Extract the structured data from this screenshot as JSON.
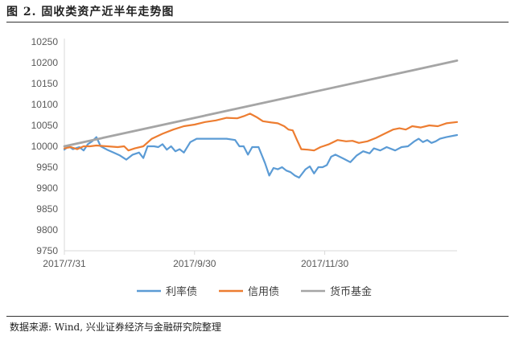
{
  "figure": {
    "title": "图 2. 固收类资产近半年走势图",
    "source": "数据来源: Wind, 兴业证券经济与金融研究院整理"
  },
  "chart_data": {
    "type": "line",
    "ylim": [
      9750,
      10250
    ],
    "yticks": [
      9750,
      9800,
      9850,
      9900,
      9950,
      10000,
      10050,
      10100,
      10150,
      10200,
      10250
    ],
    "xlim": [
      "2017-07-31",
      "2018-01-31"
    ],
    "xticks": [
      {
        "date": "2017-07-31",
        "label": "2017/7/31"
      },
      {
        "date": "2017-09-30",
        "label": "2017/9/30"
      },
      {
        "date": "2017-11-30",
        "label": "2017/11/30"
      }
    ],
    "grid": false,
    "legend_position": "bottom",
    "series": [
      {
        "name": "利率债",
        "color": "#5B9BD5",
        "points": [
          [
            "2017-07-31",
            9992
          ],
          [
            "2017-08-02",
            10000
          ],
          [
            "2017-08-04",
            9993
          ],
          [
            "2017-08-07",
            9998
          ],
          [
            "2017-08-09",
            9990
          ],
          [
            "2017-08-11",
            10005
          ],
          [
            "2017-08-13",
            10012
          ],
          [
            "2017-08-15",
            10022
          ],
          [
            "2017-08-17",
            10000
          ],
          [
            "2017-08-20",
            9992
          ],
          [
            "2017-08-23",
            9985
          ],
          [
            "2017-08-26",
            9978
          ],
          [
            "2017-08-29",
            9968
          ],
          [
            "2017-09-01",
            9980
          ],
          [
            "2017-09-04",
            9985
          ],
          [
            "2017-09-06",
            9972
          ],
          [
            "2017-09-08",
            10000
          ],
          [
            "2017-09-11",
            10000
          ],
          [
            "2017-09-13",
            9998
          ],
          [
            "2017-09-15",
            10005
          ],
          [
            "2017-09-17",
            9992
          ],
          [
            "2017-09-19",
            10000
          ],
          [
            "2017-09-21",
            9988
          ],
          [
            "2017-09-23",
            9993
          ],
          [
            "2017-09-25",
            9985
          ],
          [
            "2017-09-28",
            10010
          ],
          [
            "2017-10-01",
            10018
          ],
          [
            "2017-10-08",
            10018
          ],
          [
            "2017-10-15",
            10018
          ],
          [
            "2017-10-19",
            10015
          ],
          [
            "2017-10-21",
            10000
          ],
          [
            "2017-10-23",
            10000
          ],
          [
            "2017-10-25",
            9980
          ],
          [
            "2017-10-27",
            9998
          ],
          [
            "2017-10-30",
            9998
          ],
          [
            "2017-11-02",
            9960
          ],
          [
            "2017-11-04",
            9930
          ],
          [
            "2017-11-06",
            9948
          ],
          [
            "2017-11-08",
            9945
          ],
          [
            "2017-11-10",
            9950
          ],
          [
            "2017-11-12",
            9942
          ],
          [
            "2017-11-14",
            9938
          ],
          [
            "2017-11-16",
            9930
          ],
          [
            "2017-11-18",
            9925
          ],
          [
            "2017-11-21",
            9945
          ],
          [
            "2017-11-23",
            9952
          ],
          [
            "2017-11-25",
            9935
          ],
          [
            "2017-11-27",
            9950
          ],
          [
            "2017-11-29",
            9950
          ],
          [
            "2017-12-01",
            9955
          ],
          [
            "2017-12-03",
            9975
          ],
          [
            "2017-12-05",
            9980
          ],
          [
            "2017-12-07",
            9975
          ],
          [
            "2017-12-09",
            9970
          ],
          [
            "2017-12-12",
            9962
          ],
          [
            "2017-12-15",
            9978
          ],
          [
            "2017-12-18",
            9988
          ],
          [
            "2017-12-21",
            9983
          ],
          [
            "2017-12-23",
            9995
          ],
          [
            "2017-12-26",
            9990
          ],
          [
            "2017-12-29",
            9998
          ],
          [
            "2018-01-02",
            9990
          ],
          [
            "2018-01-05",
            9998
          ],
          [
            "2018-01-08",
            10000
          ],
          [
            "2018-01-11",
            10012
          ],
          [
            "2018-01-13",
            10018
          ],
          [
            "2018-01-15",
            10010
          ],
          [
            "2018-01-17",
            10015
          ],
          [
            "2018-01-19",
            10008
          ],
          [
            "2018-01-21",
            10012
          ],
          [
            "2018-01-23",
            10018
          ],
          [
            "2018-01-26",
            10022
          ],
          [
            "2018-01-31",
            10027
          ]
        ]
      },
      {
        "name": "信用债",
        "color": "#ED7D31",
        "points": [
          [
            "2017-07-31",
            9995
          ],
          [
            "2017-08-03",
            9998
          ],
          [
            "2017-08-06",
            9993
          ],
          [
            "2017-08-09",
            10000
          ],
          [
            "2017-08-12",
            10000
          ],
          [
            "2017-08-15",
            10002
          ],
          [
            "2017-08-20",
            10000
          ],
          [
            "2017-08-25",
            9998
          ],
          [
            "2017-08-28",
            10000
          ],
          [
            "2017-08-30",
            9990
          ],
          [
            "2017-09-02",
            9995
          ],
          [
            "2017-09-06",
            10000
          ],
          [
            "2017-09-10",
            10018
          ],
          [
            "2017-09-15",
            10030
          ],
          [
            "2017-09-20",
            10040
          ],
          [
            "2017-09-25",
            10048
          ],
          [
            "2017-09-30",
            10052
          ],
          [
            "2017-10-05",
            10058
          ],
          [
            "2017-10-10",
            10062
          ],
          [
            "2017-10-15",
            10068
          ],
          [
            "2017-10-20",
            10067
          ],
          [
            "2017-10-23",
            10072
          ],
          [
            "2017-10-26",
            10078
          ],
          [
            "2017-10-29",
            10070
          ],
          [
            "2017-11-01",
            10060
          ],
          [
            "2017-11-05",
            10057
          ],
          [
            "2017-11-08",
            10055
          ],
          [
            "2017-11-11",
            10048
          ],
          [
            "2017-11-13",
            10040
          ],
          [
            "2017-11-15",
            10038
          ],
          [
            "2017-11-17",
            10015
          ],
          [
            "2017-11-19",
            9993
          ],
          [
            "2017-11-22",
            9992
          ],
          [
            "2017-11-25",
            9990
          ],
          [
            "2017-11-28",
            9998
          ],
          [
            "2017-12-02",
            10005
          ],
          [
            "2017-12-06",
            10015
          ],
          [
            "2017-12-10",
            10012
          ],
          [
            "2017-12-13",
            10013
          ],
          [
            "2017-12-16",
            10008
          ],
          [
            "2017-12-20",
            10012
          ],
          [
            "2017-12-24",
            10020
          ],
          [
            "2017-12-28",
            10030
          ],
          [
            "2018-01-01",
            10040
          ],
          [
            "2018-01-04",
            10043
          ],
          [
            "2018-01-07",
            10040
          ],
          [
            "2018-01-10",
            10048
          ],
          [
            "2018-01-14",
            10045
          ],
          [
            "2018-01-18",
            10050
          ],
          [
            "2018-01-22",
            10048
          ],
          [
            "2018-01-26",
            10055
          ],
          [
            "2018-01-31",
            10058
          ]
        ]
      },
      {
        "name": "货币基金",
        "color": "#A5A5A5",
        "points": [
          [
            "2017-07-31",
            10000
          ],
          [
            "2018-01-31",
            10205
          ]
        ]
      }
    ]
  }
}
